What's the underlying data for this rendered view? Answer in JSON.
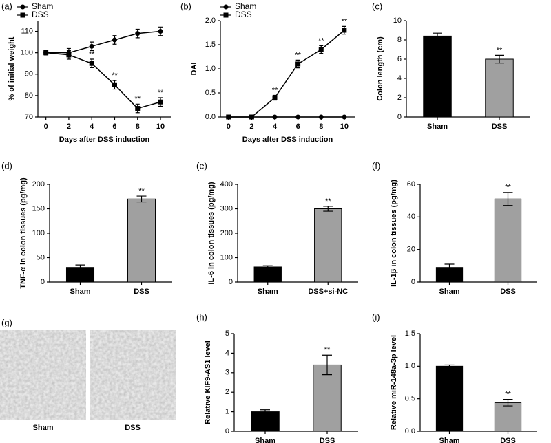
{
  "chart_data": [
    {
      "panel": "(a)",
      "type": "line",
      "xlabel": "Days after DSS induction",
      "ylabel": "% of initial weight",
      "x": [
        0,
        2,
        4,
        6,
        8,
        10
      ],
      "xlim": [
        -0.7,
        10.9
      ],
      "xticks": [
        0,
        2,
        4,
        6,
        8,
        10
      ],
      "ylim": [
        70,
        115
      ],
      "yticks": [
        70,
        80,
        90,
        100,
        110
      ],
      "legend": "upper left",
      "series": [
        {
          "name": "Sham",
          "color": "#000000",
          "marker": "circle",
          "values": [
            100,
            100,
            103,
            106,
            109,
            110
          ],
          "errors": [
            1,
            2,
            2,
            2,
            2,
            2
          ],
          "significance": [
            null,
            null,
            null,
            null,
            null,
            null
          ]
        },
        {
          "name": "DSS",
          "color": "#000000",
          "marker": "square",
          "values": [
            100,
            99,
            95,
            85,
            74,
            77
          ],
          "errors": [
            1,
            2,
            2,
            2,
            2,
            2
          ],
          "significance": [
            null,
            null,
            "**",
            "**",
            "**",
            "**"
          ]
        }
      ]
    },
    {
      "panel": "(b)",
      "type": "line",
      "xlabel": "Days after DSS induction",
      "ylabel": "DAI",
      "x": [
        0,
        2,
        4,
        6,
        8,
        10
      ],
      "xlim": [
        -0.7,
        10.9
      ],
      "xticks": [
        0,
        2,
        4,
        6,
        8,
        10
      ],
      "ylim": [
        0,
        2
      ],
      "yticks": [
        {
          "value": 0,
          "label": "0.0"
        },
        0.5,
        {
          "value": 1,
          "label": "1.0"
        },
        1.5,
        {
          "value": 2,
          "label": "2.0"
        }
      ],
      "legend": "upper left",
      "series": [
        {
          "name": "Sham",
          "color": "#000000",
          "marker": "circle",
          "values": [
            0,
            0,
            0,
            0,
            0,
            0
          ],
          "errors": [
            0,
            0,
            0,
            0,
            0,
            0
          ],
          "significance": [
            null,
            null,
            null,
            null,
            null,
            null
          ]
        },
        {
          "name": "DSS",
          "color": "#000000",
          "marker": "square",
          "values": [
            0,
            0,
            0.4,
            1.1,
            1.4,
            1.8
          ],
          "errors": [
            0,
            0,
            0.05,
            0.08,
            0.08,
            0.08
          ],
          "significance": [
            null,
            null,
            "**",
            "**",
            "**",
            "**"
          ]
        }
      ]
    },
    {
      "panel": "(c)",
      "type": "bar",
      "ylabel": "Colon length (cm)",
      "categories": [
        "Sham",
        "DSS"
      ],
      "colors": [
        "#000000",
        "#a0a0a0"
      ],
      "values": [
        8.4,
        6.0
      ],
      "errors": [
        0.3,
        0.4
      ],
      "significance": [
        null,
        "**"
      ],
      "ylim": [
        0,
        10
      ],
      "yticks": [
        0,
        2,
        4,
        6,
        8,
        10
      ]
    },
    {
      "panel": "(d)",
      "type": "bar",
      "ylabel": "TNF-α in colon tissues (pg/mg)",
      "categories": [
        "Sham",
        "DSS"
      ],
      "colors": [
        "#000000",
        "#a0a0a0"
      ],
      "values": [
        30,
        170
      ],
      "errors": [
        5,
        6
      ],
      "significance": [
        null,
        "**"
      ],
      "ylim": [
        0,
        200
      ],
      "yticks": [
        0,
        50,
        100,
        150,
        200
      ]
    },
    {
      "panel": "(e)",
      "type": "bar",
      "ylabel": "IL-6 in colon tissues (pg/mg)",
      "categories": [
        "Sham",
        "DSS+si-NC"
      ],
      "colors": [
        "#000000",
        "#a0a0a0"
      ],
      "values": [
        62,
        300
      ],
      "errors": [
        5,
        10
      ],
      "significance": [
        null,
        "**"
      ],
      "ylim": [
        0,
        400
      ],
      "yticks": [
        0,
        100,
        200,
        300,
        400
      ]
    },
    {
      "panel": "(f)",
      "type": "bar",
      "ylabel": "IL-1β in colon tissues (pg/mg)",
      "categories": [
        "Sham",
        "DSS"
      ],
      "colors": [
        "#000000",
        "#a0a0a0"
      ],
      "values": [
        9,
        51
      ],
      "errors": [
        2,
        4
      ],
      "significance": [
        null,
        "**"
      ],
      "ylim": [
        0,
        60
      ],
      "yticks": [
        0,
        20,
        40,
        60
      ]
    },
    {
      "panel": "(g)",
      "type": "image",
      "categories": [
        "Sham",
        "DSS"
      ]
    },
    {
      "panel": "(h)",
      "type": "bar",
      "ylabel": "Relative KIF9-AS1 level",
      "categories": [
        "Sham",
        "DSS"
      ],
      "colors": [
        "#000000",
        "#a0a0a0"
      ],
      "values": [
        1.0,
        3.4
      ],
      "errors": [
        0.1,
        0.5
      ],
      "significance": [
        null,
        "**"
      ],
      "ylim": [
        0,
        5
      ],
      "yticks": [
        0,
        1,
        2,
        3,
        4,
        5
      ]
    },
    {
      "panel": "(i)",
      "type": "bar",
      "ylabel": "Relative miR-148a-3p level",
      "categories": [
        "Sham",
        "DSS"
      ],
      "colors": [
        "#000000",
        "#a0a0a0"
      ],
      "values": [
        1.0,
        0.44
      ],
      "errors": [
        0.02,
        0.05
      ],
      "significance": [
        null,
        "**"
      ],
      "ylim": [
        0,
        1.5
      ],
      "yticks": [
        {
          "value": 0,
          "label": "0.0"
        },
        0.5,
        {
          "value": 1,
          "label": "1.0"
        },
        1.5
      ]
    }
  ]
}
